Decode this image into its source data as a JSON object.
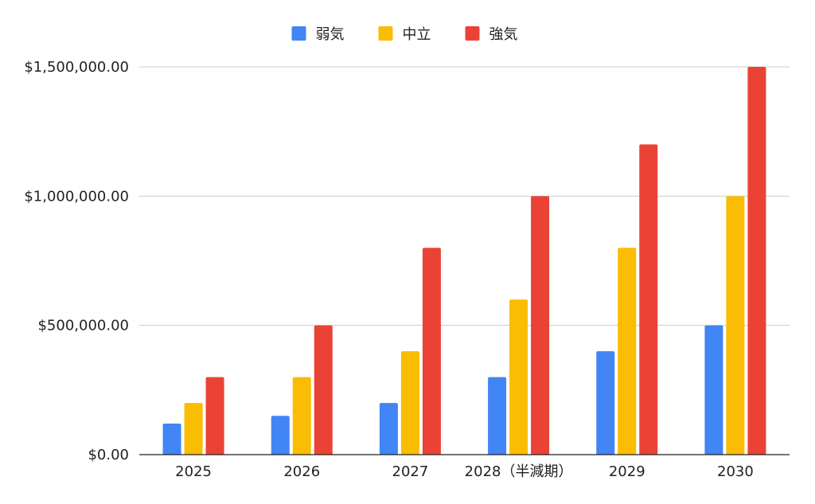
{
  "chart_data": {
    "type": "bar",
    "categories": [
      "2025",
      "2026",
      "2027",
      "2028（半減期）",
      "2029",
      "2030"
    ],
    "series": [
      {
        "name": "弱気",
        "color": "#4285F4",
        "values": [
          120000,
          150000,
          200000,
          300000,
          400000,
          500000
        ]
      },
      {
        "name": "中立",
        "color": "#FBBC04",
        "values": [
          200000,
          300000,
          400000,
          600000,
          800000,
          1000000
        ]
      },
      {
        "name": "強気",
        "color": "#EA4335",
        "values": [
          300000,
          500000,
          800000,
          1000000,
          1200000,
          1500000
        ]
      }
    ],
    "yticks": [
      0,
      500000,
      1000000,
      1500000
    ],
    "ytick_labels": [
      "$0.00",
      "$500,000.00",
      "$1,000,000.00",
      "$1,500,000.00"
    ],
    "ylim": [
      0,
      1500000
    ],
    "grid": true,
    "legend_position": "top-center",
    "gridline_color": "#cccccc",
    "axis_color": "#222222"
  }
}
